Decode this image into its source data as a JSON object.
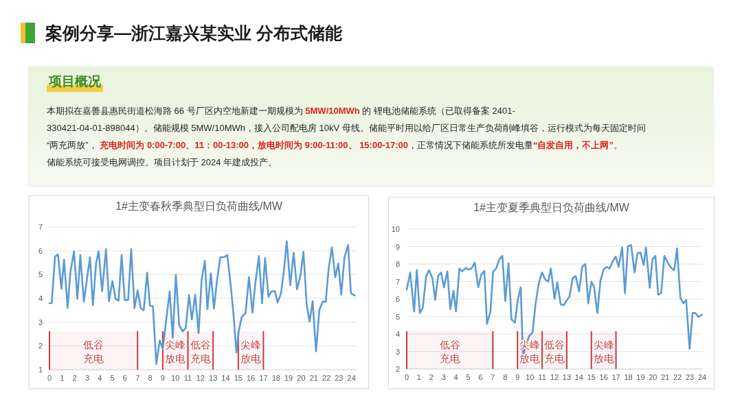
{
  "chart_data": [
    {
      "type": "other",
      "title": "案例分享—浙江嘉兴某实业 分布式储能",
      "subtitle": "项目概况",
      "annotations": [
        "本期拟在嘉善县惠民街道松海路 66 号厂区内空地新建一期规模为 ",
        "5MW/10MWh",
        " 的 锂电池储能系统（已取得备案 2401-",
        "330421-04-01-898044）。储能规模 5MW/10MWh，接入公司配电房 10kV 母线。储能平时用以给厂区日常生产负荷削峰填谷，运行模式为每天固定时间",
        "“两充两放”， ",
        "充电时间为 0:00-7:00、11：00-13:00，放电时间为 9:00-11:00、 15:00-17:00",
        "，正常情况下储能系统所发电量",
        "“自发自用，不上网”",
        "。",
        "储能系统可接受电网调控。项目计划于 2024 年建成投产。"
      ]
    },
    {
      "type": "line",
      "title": "1#主变春秋季典型日负荷曲线/MW",
      "xlim": [
        0,
        24.4
      ],
      "ylim": [
        1,
        7
      ],
      "xticks": [
        0,
        1,
        2,
        3,
        4,
        5,
        6,
        7,
        8,
        9,
        10,
        11,
        12,
        13,
        14,
        15,
        16,
        17,
        18,
        19,
        20,
        21,
        22,
        23,
        24
      ],
      "yticks": [
        1,
        2,
        3,
        4,
        5,
        6,
        7
      ],
      "grid": "y",
      "x": [
        0,
        0.18,
        0.44,
        0.67,
        0.95,
        1.16,
        1.44,
        1.67,
        1.95,
        2.22,
        2.45,
        2.73,
        3.22,
        3.45,
        3.71,
        3.91,
        4.18,
        4.49,
        4.73,
        5.0,
        5.25,
        5.49,
        5.73,
        5.98,
        6.25,
        6.49,
        6.76,
        7.0,
        7.25,
        7.49,
        7.76,
        7.98,
        8.22,
        8.49,
        8.76,
        9.0,
        9.55,
        9.8,
        10.04,
        10.31,
        10.58,
        10.82,
        11.09,
        11.31,
        11.58,
        11.85,
        12.09,
        12.35,
        12.55,
        12.82,
        13.07,
        13.31,
        13.58,
        13.85,
        14.13,
        14.4,
        14.64,
        14.85,
        15.04,
        15.27,
        15.58,
        15.85,
        16.13,
        16.36,
        16.64,
        16.89,
        17.13,
        17.4,
        17.64,
        17.91,
        18.13,
        18.4,
        18.64,
        18.85,
        19.13,
        19.4,
        19.67,
        19.95,
        20.18,
        20.44,
        20.67,
        20.91,
        21.18,
        21.44,
        21.71,
        21.95,
        22.18,
        22.44,
        22.71,
        22.95,
        23.18,
        23.44,
        23.73,
        23.95,
        24.25
      ],
      "series": [
        {
          "color": "#5b9bd5",
          "values": [
            3.8,
            3.8,
            5.75,
            5.85,
            4.4,
            5.63,
            3.6,
            5.13,
            5.98,
            3.98,
            5.82,
            3.86,
            5.73,
            3.7,
            5.5,
            5.98,
            4.29,
            6.07,
            3.88,
            4.73,
            3.98,
            3.9,
            5.82,
            3.93,
            3.93,
            6.07,
            3.59,
            4.34,
            3.59,
            3.5,
            5.08,
            3.69,
            3.67,
            1.24,
            2.23,
            1.88,
            4.29,
            2.34,
            4.99,
            2.87,
            2.61,
            2.75,
            4.14,
            3.11,
            4.15,
            2.54,
            4.79,
            5.58,
            3.55,
            5.05,
            3.57,
            4.75,
            5.73,
            5.73,
            5.82,
            4.55,
            3.21,
            1.72,
            2.63,
            3.21,
            3.38,
            4.89,
            3.4,
            4.65,
            5.78,
            3.79,
            5.69,
            4.07,
            4.29,
            4.31,
            3.83,
            4.22,
            5.23,
            6.4,
            4.55,
            5.92,
            4.38,
            4.99,
            5.95,
            3.71,
            3.02,
            3.88,
            1.77,
            3.5,
            3.86,
            3.86,
            5.25,
            6.14,
            4.89,
            5.47,
            4.15,
            5.71,
            6.24,
            4.22,
            4.12
          ]
        }
      ],
      "ref_lines": [
        {
          "axis": "x",
          "value": 0,
          "color": "#c83a3c"
        },
        {
          "axis": "x",
          "value": 7,
          "color": "#c83a3c"
        },
        {
          "axis": "x",
          "value": 9,
          "color": "#c83a3c"
        },
        {
          "axis": "x",
          "value": 11,
          "color": "#c83a3c"
        },
        {
          "axis": "x",
          "value": 13,
          "color": "#c83a3c"
        },
        {
          "axis": "x",
          "value": 15,
          "color": "#c83a3c"
        },
        {
          "axis": "x",
          "value": 17,
          "color": "#c83a3c"
        }
      ],
      "bands": [
        {
          "axis": "x",
          "from": 0,
          "to": 7,
          "label": "低谷充电",
          "color": "#c83a3c"
        },
        {
          "axis": "x",
          "from": 9,
          "to": 11,
          "label": "尖峰放电",
          "color": "#c83a3c"
        },
        {
          "axis": "x",
          "from": 11,
          "to": 13,
          "label": "低谷充电",
          "color": "#c83a3c"
        },
        {
          "axis": "x",
          "from": 15,
          "to": 17,
          "label": "尖峰放电",
          "color": "#c83a3c"
        }
      ]
    },
    {
      "type": "line",
      "title": "1#主变夏季典型日负荷曲线/MW",
      "xlim": [
        0,
        24
      ],
      "ylim": [
        2,
        10
      ],
      "xticks": [
        0,
        1,
        2,
        3,
        4,
        5,
        6,
        7,
        8,
        9,
        10,
        11,
        12,
        13,
        14,
        15,
        16,
        17,
        18,
        19,
        20,
        21,
        22,
        23,
        24
      ],
      "yticks": [
        2,
        3,
        4,
        5,
        6,
        7,
        8,
        9,
        10
      ],
      "grid": "y",
      "x": [
        0,
        0.28,
        0.6,
        0.82,
        1.06,
        1.3,
        1.58,
        1.81,
        2.09,
        2.31,
        2.55,
        2.79,
        3.02,
        3.3,
        3.54,
        3.8,
        4.0,
        4.28,
        4.51,
        4.79,
        5.03,
        5.25,
        5.53,
        5.81,
        6.05,
        6.31,
        6.52,
        6.8,
        7.02,
        7.26,
        7.52,
        7.77,
        8.01,
        8.27,
        8.51,
        8.79,
        9.03,
        9.26,
        9.44,
        9.66,
        9.96,
        10.22,
        10.47,
        10.74,
        10.99,
        11.25,
        11.49,
        11.71,
        12.01,
        12.23,
        12.51,
        12.76,
        12.98,
        13.22,
        13.48,
        13.73,
        14.0,
        14.25,
        14.51,
        14.75,
        15.0,
        15.21,
        15.49,
        15.74,
        16.0,
        16.24,
        16.48,
        16.7,
        16.98,
        17.21,
        17.5,
        17.73,
        17.97,
        18.23,
        18.51,
        18.75,
        18.99,
        19.25,
        19.44,
        19.74,
        19.96,
        20.2,
        20.43,
        20.67,
        20.93,
        21.21,
        21.49,
        21.73,
        21.96,
        22.23,
        22.47,
        22.7,
        22.98,
        23.22,
        23.44,
        23.72,
        23.97
      ],
      "series": [
        {
          "color": "#5b9bd5",
          "values": [
            6.54,
            7.52,
            5.29,
            7.65,
            5.2,
            5.49,
            7.32,
            7.65,
            7.19,
            5.95,
            7.32,
            7.52,
            6.67,
            7.58,
            5.42,
            6.47,
            5.29,
            7.74,
            7.58,
            7.78,
            7.69,
            7.74,
            8.08,
            6.67,
            7.39,
            7.61,
            4.58,
            5.29,
            7.58,
            7.74,
            8.26,
            8.47,
            5.88,
            8.04,
            4.84,
            4.64,
            5.99,
            6.67,
            2.75,
            3.33,
            3.9,
            4.08,
            5.75,
            6.95,
            7.52,
            7.12,
            6.99,
            7.74,
            6.01,
            6.95,
            5.69,
            5.65,
            5.91,
            6.14,
            7.19,
            7.32,
            6.43,
            7.84,
            8.0,
            5.75,
            6.99,
            6.73,
            5.2,
            7.06,
            7.69,
            7.84,
            7.74,
            8.1,
            8.43,
            7.84,
            8.95,
            6.34,
            9.02,
            9.08,
            7.52,
            8.63,
            8.65,
            7.95,
            8.95,
            6.64,
            8.26,
            8.47,
            6.25,
            6.34,
            8.47,
            8.08,
            7.78,
            7.65,
            8.89,
            6.08,
            5.75,
            5.95,
            3.14,
            5.2,
            5.2,
            4.97,
            5.1
          ]
        }
      ],
      "ref_lines": [
        {
          "axis": "x",
          "value": 0,
          "color": "#c83a3c"
        },
        {
          "axis": "x",
          "value": 7,
          "color": "#c83a3c"
        },
        {
          "axis": "x",
          "value": 9,
          "color": "#c83a3c"
        },
        {
          "axis": "x",
          "value": 11,
          "color": "#c83a3c"
        },
        {
          "axis": "x",
          "value": 13,
          "color": "#c83a3c"
        },
        {
          "axis": "x",
          "value": 15,
          "color": "#c83a3c"
        },
        {
          "axis": "x",
          "value": 17,
          "color": "#c83a3c"
        }
      ],
      "bands": [
        {
          "axis": "x",
          "from": 0,
          "to": 7,
          "label": "低谷充电",
          "color": "#c83a3c"
        },
        {
          "axis": "x",
          "from": 9,
          "to": 11,
          "label": "尖峰放电",
          "color": "#c83a3c"
        },
        {
          "axis": "x",
          "from": 11,
          "to": 13,
          "label": "低谷充电",
          "color": "#c83a3c"
        },
        {
          "axis": "x",
          "from": 15,
          "to": 17,
          "label": "尖峰放电",
          "color": "#c83a3c"
        }
      ]
    }
  ]
}
